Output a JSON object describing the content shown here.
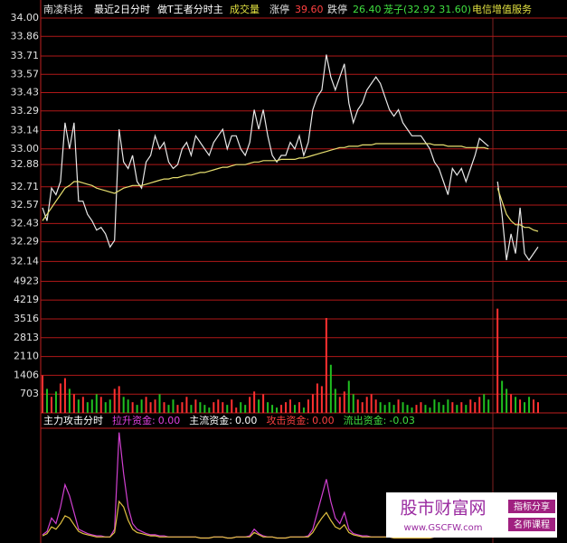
{
  "header": {
    "stock": "南凌科技",
    "period": "最近2日分时",
    "indicator": "做T王者分时主",
    "volume_label": "成交量",
    "limit_up_label": "涨停",
    "limit_up": "39.60",
    "limit_down_label": "跌停",
    "limit_down": "26.40",
    "cage": "茏子(32.92 31.60)",
    "sector": "电信增值服务"
  },
  "indicator_header": {
    "title": "主力攻击分时",
    "items": [
      {
        "name": "拉升资金:",
        "value": "0.00",
        "color": "#e040e0"
      },
      {
        "name": "主流资金:",
        "value": "0.00",
        "color": "#ffffff"
      },
      {
        "name": "攻击资金:",
        "value": "0.00",
        "color": "#ff4040"
      },
      {
        "name": "流出资金:",
        "value": "-0.03",
        "color": "#40e040"
      }
    ]
  },
  "watermark": {
    "name": "股市财富网",
    "url": "www.GSCFW.com",
    "tag1": "指标分享",
    "tag2": "名师课程"
  },
  "chart_data": [
    {
      "type": "line",
      "ylim": [
        32.08,
        34.0
      ],
      "grid": true,
      "yticks": [
        {
          "value": 34,
          "label": "34.00"
        },
        33.86,
        33.71,
        33.57,
        33.43,
        33.29,
        33.14,
        {
          "value": 33,
          "label": "33.00"
        },
        32.88,
        32.71,
        32.57,
        32.43,
        32.29,
        32.14
      ],
      "series": [
        {
          "color": "#e8e8e8",
          "values": [
            32.55,
            32.45,
            32.7,
            32.65,
            32.75,
            33.2,
            33.0,
            33.2,
            32.6,
            32.6,
            32.5,
            32.45,
            32.38,
            32.4,
            32.35,
            32.25,
            32.3,
            33.15,
            32.9,
            32.85,
            32.95,
            32.75,
            32.7,
            32.9,
            32.95,
            33.1,
            33.0,
            33.05,
            32.9,
            32.85,
            32.88,
            33.0,
            33.05,
            32.95,
            33.1,
            33.05,
            33.0,
            32.95,
            33.05,
            33.1,
            33.15,
            33.0,
            33.1,
            33.1,
            33.0,
            32.95,
            33.05,
            33.3,
            33.15,
            33.3,
            33.1,
            32.95,
            32.9,
            32.95,
            32.95,
            33.05,
            33.0,
            33.1,
            32.95,
            33.05,
            33.3,
            33.4,
            33.45,
            33.72,
            33.55,
            33.45,
            33.55,
            33.65,
            33.35,
            33.2,
            33.3,
            33.35,
            33.45,
            33.5,
            33.55,
            33.5,
            33.4,
            33.3,
            33.25,
            33.3,
            33.2,
            33.15,
            33.1,
            33.1,
            33.1,
            33.05,
            33.0,
            32.9,
            32.85,
            32.75,
            32.65,
            32.85,
            32.8,
            32.85,
            32.75,
            32.85,
            32.95,
            33.08,
            33.05,
            33.02,
            null,
            32.75,
            32.5,
            32.15,
            32.35,
            32.2,
            32.55,
            32.2,
            32.15,
            32.2,
            32.25
          ]
        },
        {
          "color": "#e8e070",
          "values": [
            32.45,
            32.5,
            32.55,
            32.6,
            32.65,
            32.7,
            32.72,
            32.75,
            32.75,
            32.74,
            32.73,
            32.72,
            32.7,
            32.69,
            32.68,
            32.67,
            32.66,
            32.68,
            32.7,
            32.71,
            32.72,
            32.72,
            32.72,
            32.73,
            32.74,
            32.75,
            32.76,
            32.77,
            32.77,
            32.78,
            32.78,
            32.79,
            32.8,
            32.8,
            32.81,
            32.82,
            32.82,
            32.83,
            32.84,
            32.85,
            32.86,
            32.86,
            32.87,
            32.88,
            32.88,
            32.88,
            32.89,
            32.9,
            32.9,
            32.91,
            32.91,
            32.91,
            32.91,
            32.92,
            32.92,
            32.92,
            32.92,
            32.93,
            32.93,
            32.94,
            32.95,
            32.96,
            32.97,
            32.98,
            32.99,
            33.0,
            33.01,
            33.01,
            33.02,
            33.02,
            33.02,
            33.03,
            33.03,
            33.03,
            33.04,
            33.04,
            33.04,
            33.04,
            33.04,
            33.04,
            33.04,
            33.04,
            33.04,
            33.04,
            33.04,
            33.04,
            33.04,
            33.03,
            33.03,
            33.03,
            33.02,
            33.02,
            33.02,
            33.02,
            33.01,
            33.01,
            33.01,
            33.01,
            33.01,
            33.0,
            null,
            32.7,
            32.6,
            32.5,
            32.45,
            32.42,
            32.42,
            32.4,
            32.4,
            32.38,
            32.37
          ]
        }
      ]
    },
    {
      "type": "bar",
      "ylim": [
        0,
        5374
      ],
      "grid": true,
      "up_color": "#ff3030",
      "down_color": "#20c020",
      "yticks": [
        4923,
        4219,
        3516,
        2813,
        2110,
        1406,
        703
      ],
      "values": [
        1400,
        900,
        600,
        800,
        1100,
        1300,
        900,
        700,
        500,
        600,
        400,
        500,
        700,
        600,
        400,
        500,
        900,
        1000,
        600,
        500,
        400,
        300,
        500,
        600,
        400,
        500,
        700,
        400,
        300,
        500,
        300,
        400,
        600,
        300,
        500,
        400,
        300,
        200,
        400,
        500,
        400,
        300,
        500,
        200,
        400,
        300,
        600,
        800,
        500,
        700,
        400,
        300,
        200,
        300,
        400,
        500,
        300,
        400,
        200,
        500,
        700,
        1100,
        1000,
        3550,
        1800,
        900,
        600,
        800,
        1200,
        700,
        500,
        400,
        600,
        700,
        500,
        400,
        300,
        400,
        300,
        500,
        400,
        300,
        200,
        300,
        400,
        300,
        200,
        500,
        400,
        300,
        500,
        400,
        300,
        400,
        300,
        500,
        400,
        600,
        700,
        500,
        null,
        3900,
        1200,
        900,
        700,
        600,
        500,
        400,
        600,
        500,
        400
      ]
    },
    {
      "type": "line",
      "ylim": [
        0,
        100
      ],
      "series": [
        {
          "color": "#d040d0",
          "values": [
            5,
            8,
            20,
            15,
            30,
            50,
            40,
            25,
            10,
            8,
            6,
            5,
            4,
            4,
            3,
            3,
            10,
            97,
            60,
            30,
            15,
            10,
            8,
            6,
            5,
            5,
            4,
            4,
            3,
            3,
            3,
            3,
            3,
            3,
            3,
            2,
            2,
            2,
            3,
            3,
            3,
            2,
            2,
            3,
            3,
            3,
            4,
            10,
            6,
            4,
            3,
            3,
            2,
            2,
            2,
            3,
            3,
            3,
            3,
            4,
            10,
            25,
            40,
            55,
            35,
            20,
            15,
            25,
            10,
            6,
            5,
            4,
            4,
            3,
            3,
            3,
            3,
            3,
            2,
            2,
            2,
            2,
            2,
            2,
            2,
            2,
            2,
            3,
            3,
            3,
            3,
            3,
            3,
            3,
            3,
            3,
            3,
            4,
            5,
            4,
            null,
            30,
            15,
            10,
            8,
            6,
            5,
            4,
            4,
            3,
            3
          ]
        },
        {
          "color": "#e0c040",
          "values": [
            4,
            6,
            12,
            10,
            15,
            22,
            20,
            14,
            8,
            6,
            5,
            4,
            3,
            3,
            3,
            3,
            7,
            35,
            30,
            18,
            10,
            7,
            6,
            5,
            4,
            4,
            3,
            3,
            3,
            3,
            3,
            3,
            3,
            3,
            3,
            2,
            2,
            2,
            3,
            3,
            3,
            2,
            2,
            3,
            3,
            3,
            3,
            7,
            5,
            3,
            3,
            3,
            2,
            2,
            2,
            3,
            3,
            3,
            3,
            3,
            7,
            14,
            20,
            25,
            18,
            12,
            10,
            14,
            7,
            5,
            4,
            3,
            3,
            3,
            3,
            3,
            3,
            3,
            2,
            2,
            2,
            2,
            2,
            2,
            2,
            2,
            2,
            3,
            3,
            3,
            3,
            3,
            3,
            3,
            3,
            3,
            3,
            3,
            4,
            3,
            null,
            18,
            10,
            7,
            6,
            5,
            4,
            3,
            3,
            3,
            3
          ]
        }
      ]
    }
  ]
}
